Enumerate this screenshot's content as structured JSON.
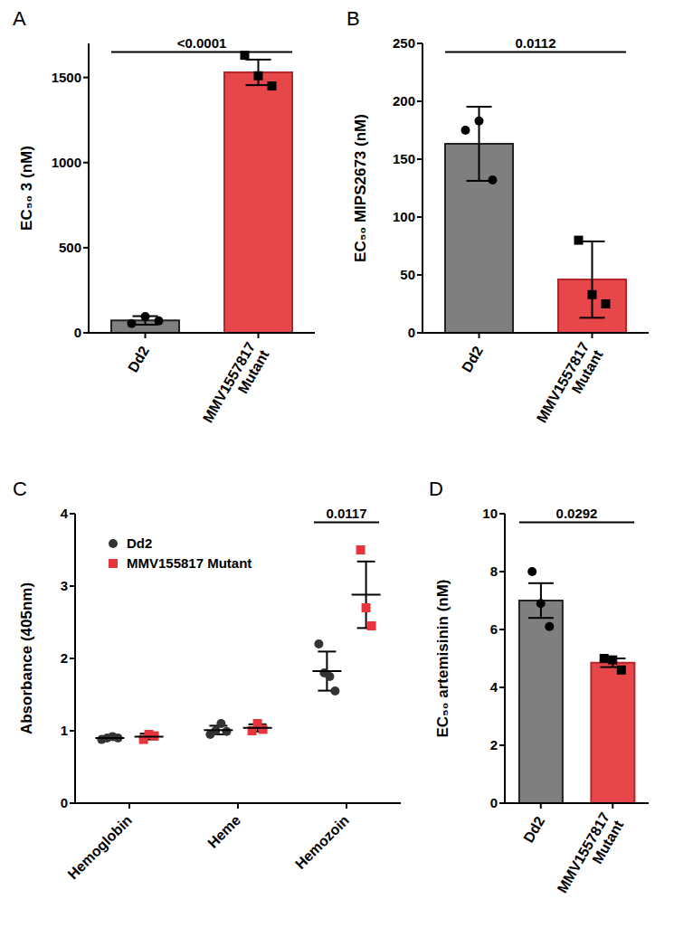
{
  "chart_data": [
    {
      "title": "A",
      "type": "bar",
      "categories": [
        "Dd2",
        "MMV1557817 Mutant"
      ],
      "values": [
        73,
        1530
      ],
      "error_bars": [
        25,
        75
      ],
      "points": [
        [
          55,
          95,
          70
        ],
        [
          1630,
          1510,
          1450
        ]
      ],
      "colors": [
        "#7f7f7f",
        "#e8474a"
      ],
      "y_label": "EC₅₀ 3 (nM)",
      "ylim": [
        0,
        1700
      ],
      "yticks": [
        0,
        500,
        1000,
        1500
      ],
      "annotations": [
        {
          "text": "<0.0001",
          "categories": [
            "Dd2",
            "MMV1557817 Mutant"
          ]
        }
      ]
    },
    {
      "title": "B",
      "type": "bar",
      "categories": [
        "Dd2",
        "MMV1557817 Mutant"
      ],
      "values": [
        163.3,
        46
      ],
      "error_bars": [
        32,
        33
      ],
      "points": [
        [
          175,
          183,
          132
        ],
        [
          80,
          33,
          25
        ]
      ],
      "colors": [
        "#7f7f7f",
        "#e8474a"
      ],
      "y_label": "EC₅₀ MIPS2673 (nM)",
      "ylim": [
        0,
        250
      ],
      "yticks": [
        0,
        50,
        100,
        150,
        200,
        250
      ],
      "annotations": [
        {
          "text": "0.0112",
          "categories": [
            "Dd2",
            "MMV1557817 Mutant"
          ]
        }
      ]
    },
    {
      "title": "C",
      "type": "scatter",
      "categories": [
        "Hemoglobin",
        "Heme",
        "Hemozoin"
      ],
      "series": [
        {
          "name": "Dd2",
          "color": "#333333",
          "marker": "circle",
          "values": [
            0.9,
            1.01,
            1.825
          ],
          "error_bars": [
            0.02,
            0.06,
            0.27
          ],
          "points": [
            [
              0.88,
              0.9,
              0.92,
              0.9
            ],
            [
              0.95,
              1.0,
              1.1,
              0.99
            ],
            [
              2.2,
              1.8,
              1.75,
              1.55
            ]
          ]
        },
        {
          "name": "MMV155817 Mutant",
          "color": "#e8353b",
          "marker": "square",
          "values": [
            0.92,
            1.04,
            2.88
          ],
          "error_bars": [
            0.04,
            0.05,
            0.46
          ],
          "points": [
            [
              0.88,
              0.95,
              0.93
            ],
            [
              1.0,
              1.1,
              1.02
            ],
            [
              3.5,
              2.7,
              2.45
            ]
          ]
        }
      ],
      "y_label": "Absorbance (405nm)",
      "ylim": [
        0,
        4
      ],
      "yticks": [
        0,
        1,
        2,
        3,
        4
      ],
      "legend": "upper left",
      "annotations": [
        {
          "text": "0.0117",
          "categories": [
            "Hemozoin"
          ]
        }
      ]
    },
    {
      "title": "D",
      "type": "bar",
      "categories": [
        "Dd2",
        "MMV1557817 Mutant"
      ],
      "values": [
        7.0,
        4.85
      ],
      "error_bars": [
        0.6,
        0.15
      ],
      "points": [
        [
          8.0,
          6.9,
          6.1
        ],
        [
          5.0,
          4.95,
          4.6
        ]
      ],
      "colors": [
        "#7f7f7f",
        "#e8474a"
      ],
      "y_label": "EC₅₀ artemisinin (nM)",
      "ylim": [
        0,
        10
      ],
      "yticks": [
        0,
        2,
        4,
        6,
        8,
        10
      ],
      "annotations": [
        {
          "text": "0.0292",
          "categories": [
            "Dd2",
            "MMV1557817 Mutant"
          ]
        }
      ]
    }
  ]
}
